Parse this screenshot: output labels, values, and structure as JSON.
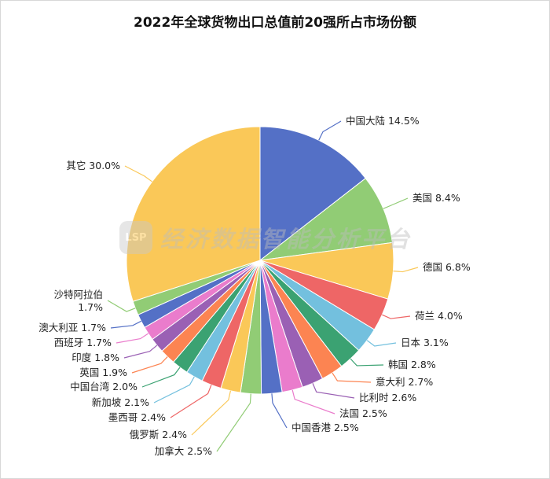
{
  "chart_data": {
    "type": "pie",
    "title": "2022年全球货物出口总值前20强所占市场份额",
    "slices": [
      {
        "name": "中国大陆",
        "value": 14.5,
        "label": "中国大陆 14.5%",
        "color": "#5470c6"
      },
      {
        "name": "美国",
        "value": 8.4,
        "label": "美国 8.4%",
        "color": "#91cc75"
      },
      {
        "name": "德国",
        "value": 6.8,
        "label": "德国 6.8%",
        "color": "#fac858"
      },
      {
        "name": "荷兰",
        "value": 4.0,
        "label": "荷兰 4.0%",
        "color": "#ee6666"
      },
      {
        "name": "日本",
        "value": 3.1,
        "label": "日本 3.1%",
        "color": "#73c0de"
      },
      {
        "name": "韩国",
        "value": 2.8,
        "label": "韩国 2.8%",
        "color": "#3ba272"
      },
      {
        "name": "意大利",
        "value": 2.7,
        "label": "意大利 2.7%",
        "color": "#fc8452"
      },
      {
        "name": "比利时",
        "value": 2.6,
        "label": "比利时 2.6%",
        "color": "#9a60b4"
      },
      {
        "name": "法国",
        "value": 2.5,
        "label": "法国 2.5%",
        "color": "#ea7ccc"
      },
      {
        "name": "中国香港",
        "value": 2.5,
        "label": "中国香港 2.5%",
        "color": "#5470c6"
      },
      {
        "name": "加拿大",
        "value": 2.5,
        "label": "加拿大 2.5%",
        "color": "#91cc75"
      },
      {
        "name": "俄罗斯",
        "value": 2.4,
        "label": "俄罗斯 2.4%",
        "color": "#fac858"
      },
      {
        "name": "墨西哥",
        "value": 2.4,
        "label": "墨西哥 2.4%",
        "color": "#ee6666"
      },
      {
        "name": "新加坡",
        "value": 2.1,
        "label": "新加坡 2.1%",
        "color": "#73c0de"
      },
      {
        "name": "中国台湾",
        "value": 2.0,
        "label": "中国台湾 2.0%",
        "color": "#3ba272"
      },
      {
        "name": "英国",
        "value": 1.9,
        "label": "英国 1.9%",
        "color": "#fc8452"
      },
      {
        "name": "印度",
        "value": 1.8,
        "label": "印度 1.8%",
        "color": "#9a60b4"
      },
      {
        "name": "西班牙",
        "value": 1.7,
        "label": "西班牙 1.7%",
        "color": "#ea7ccc"
      },
      {
        "name": "澳大利亚",
        "value": 1.7,
        "label": "澳大利亚 1.7%",
        "color": "#5470c6"
      },
      {
        "name": "沙特阿拉伯",
        "value": 1.7,
        "label": "沙特阿拉伯 1.7%",
        "label_lines": [
          "沙特阿拉伯",
          "1.7%"
        ],
        "color": "#91cc75"
      },
      {
        "name": "其它",
        "value": 30.0,
        "label": "其它 30.0%",
        "color": "#fac858"
      }
    ],
    "legend": "none"
  },
  "watermark": {
    "logo_text": "LSP",
    "text": "经济数据智能分析平台"
  }
}
